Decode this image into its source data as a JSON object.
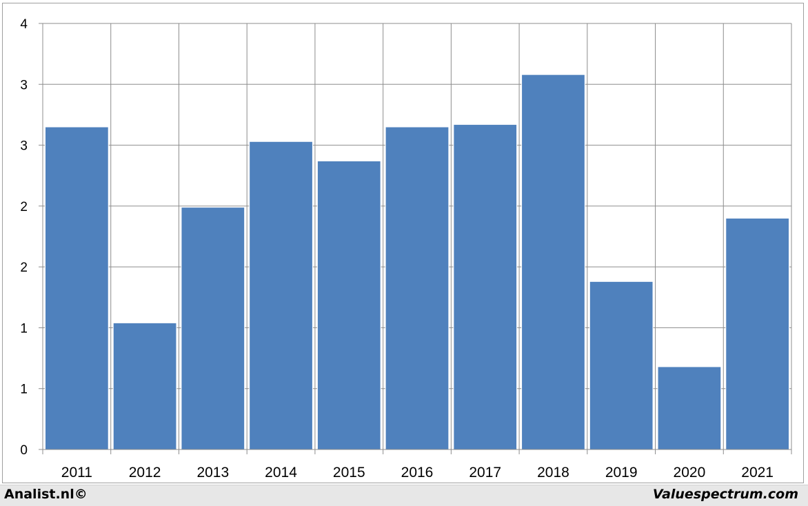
{
  "chart_data": {
    "type": "bar",
    "categories": [
      "2011",
      "2012",
      "2013",
      "2014",
      "2015",
      "2016",
      "2017",
      "2018",
      "2019",
      "2020",
      "2021"
    ],
    "values": [
      2.65,
      1.04,
      1.99,
      2.53,
      2.37,
      2.65,
      2.67,
      3.08,
      1.38,
      0.68,
      1.9
    ],
    "y_tick_labels": [
      "0",
      "1",
      "1",
      "2",
      "2",
      "3",
      "3",
      "4"
    ],
    "ylim": [
      0,
      3.5
    ],
    "grid": true,
    "title": "",
    "xlabel": "",
    "ylabel": "",
    "bar_color": "#4f81bd"
  },
  "footer": {
    "left_text": "Analist.nl©",
    "right_text": "Valuespectrum.com",
    "background": "#e7e7e7"
  }
}
